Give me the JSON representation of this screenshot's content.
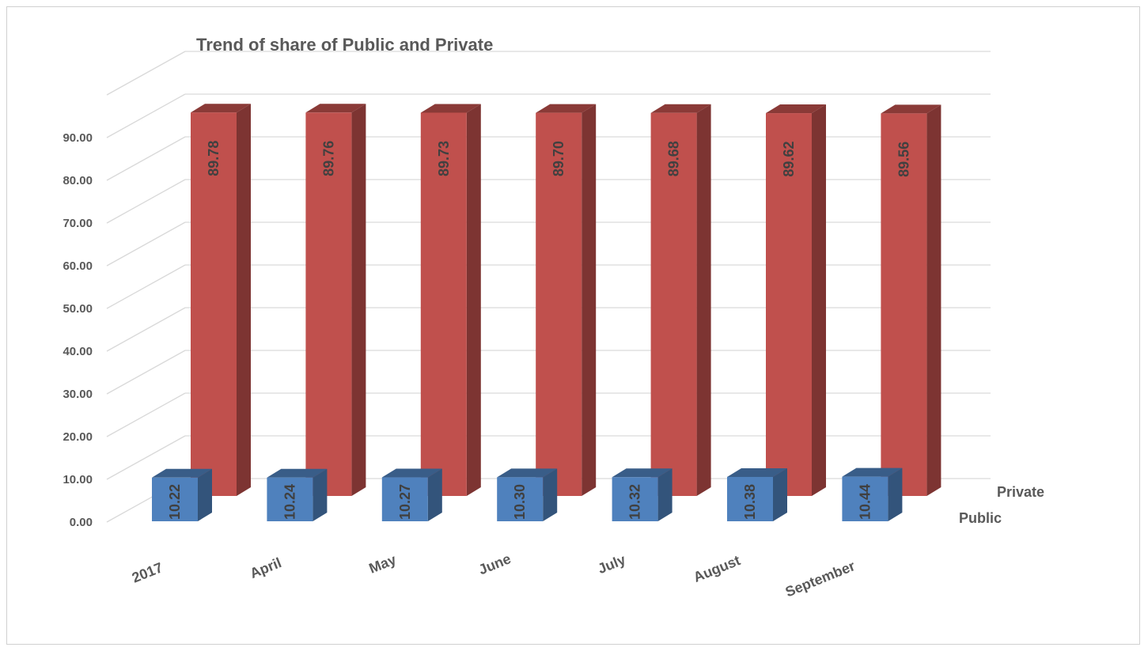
{
  "chart_data": {
    "type": "bar",
    "title": "Trend of  share of Public and Private",
    "categories": [
      "2017",
      "April",
      "May",
      "June",
      "July",
      "August",
      "September"
    ],
    "series": [
      {
        "name": "Public",
        "values": [
          10.22,
          10.24,
          10.27,
          10.3,
          10.32,
          10.38,
          10.44
        ],
        "color": "#4f81bd"
      },
      {
        "name": "Private",
        "values": [
          89.78,
          89.76,
          89.73,
          89.7,
          89.68,
          89.62,
          89.56
        ],
        "color": "#c0504d"
      }
    ],
    "data_labels": {
      "Public": [
        "10.22",
        "10.24",
        "10.27",
        "10.30",
        "10.32",
        "10.38",
        "10.44"
      ],
      "Private": [
        "89.78",
        "89.76",
        "89.73",
        "89.70",
        "89.68",
        "89.62",
        "89.56"
      ]
    },
    "yticks": [
      "0.00",
      "10.00",
      "20.00",
      "30.00",
      "40.00",
      "50.00",
      "60.00",
      "70.00",
      "80.00",
      "90.00"
    ],
    "ylim": [
      0,
      100
    ],
    "grid": true,
    "style": "3d-column"
  }
}
